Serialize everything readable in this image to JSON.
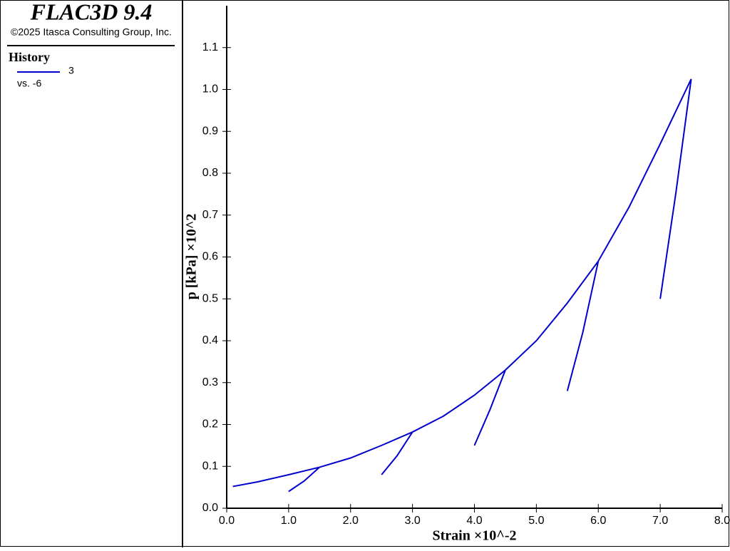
{
  "header": {
    "title": "FLAC3D 9.4",
    "copyright": "©2025 Itasca Consulting Group, Inc."
  },
  "legend": {
    "title": "History",
    "entry": "3",
    "vs": "vs. -6"
  },
  "chart_data": {
    "type": "line",
    "xlabel": "Strain ×10^-2",
    "ylabel": "p [kPa] ×10^2",
    "xlim": [
      0,
      8
    ],
    "ylim": [
      0,
      1.2
    ],
    "xticks": [
      {
        "value": 0,
        "label": "0.0"
      },
      {
        "value": 1,
        "label": "1.0"
      },
      {
        "value": 2,
        "label": "2.0"
      },
      {
        "value": 3,
        "label": "3.0"
      },
      {
        "value": 4,
        "label": "4.0"
      },
      {
        "value": 5,
        "label": "5.0"
      },
      {
        "value": 6,
        "label": "6.0"
      },
      {
        "value": 7,
        "label": "7.0"
      },
      {
        "value": 8,
        "label": "8.0"
      }
    ],
    "yticks": [
      {
        "value": 0,
        "label": "0.0"
      },
      0.1,
      0.2,
      0.3,
      0.4,
      0.5,
      0.6,
      0.7,
      0.8,
      0.9,
      {
        "value": 1,
        "label": "1.0"
      },
      1.1
    ],
    "series": [
      {
        "name": "3",
        "color": "#0000cc",
        "x": [
          0.1,
          0.5,
          1.0,
          1.5,
          2.0,
          2.5,
          3.0,
          3.5,
          4.0,
          4.5,
          5.0,
          5.5,
          6.0,
          6.5,
          7.0,
          7.5,
          null,
          1.5,
          1.25,
          1.0,
          null,
          3.0,
          2.75,
          2.5,
          null,
          4.5,
          4.25,
          4.0,
          null,
          6.0,
          5.75,
          5.5,
          null,
          7.5,
          7.25,
          7.0
        ],
        "values": [
          0.052,
          0.063,
          0.08,
          0.098,
          0.12,
          0.15,
          0.182,
          0.22,
          0.27,
          0.33,
          0.4,
          0.49,
          0.59,
          0.72,
          0.87,
          1.025,
          null,
          0.098,
          0.065,
          0.04,
          null,
          0.182,
          0.125,
          0.08,
          null,
          0.33,
          0.235,
          0.15,
          null,
          0.59,
          0.42,
          0.28,
          null,
          1.025,
          0.75,
          0.5
        ]
      }
    ]
  }
}
